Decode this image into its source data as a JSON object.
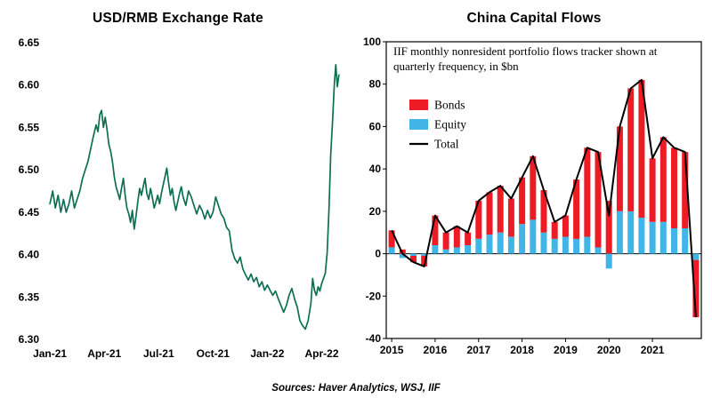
{
  "figure": {
    "sources_note": "Sources: Haver Analytics, WSJ, IIF"
  },
  "chart_data": [
    {
      "type": "line",
      "title": "USD/RMB Exchange Rate",
      "ylabel": "",
      "xlabel": "",
      "y_min": 6.3,
      "y_max": 6.65,
      "x_min": -0.3,
      "x_max": 16.5,
      "grid": false,
      "line_color": "#0e6f51",
      "y_ticks": [
        "6.65",
        "6.60",
        "6.55",
        "6.50",
        "6.45",
        "6.40",
        "6.35",
        "6.30"
      ],
      "x_ticks": [
        {
          "label": "Jan-21",
          "m": 0
        },
        {
          "label": "Apr-21",
          "m": 3
        },
        {
          "label": "Jul-21",
          "m": 6
        },
        {
          "label": "Oct-21",
          "m": 9
        },
        {
          "label": "Jan-22",
          "m": 12
        },
        {
          "label": "Apr-22",
          "m": 15
        }
      ],
      "series_name": "USD/RMB",
      "points": [
        [
          0,
          6.46
        ],
        [
          0.15,
          6.475
        ],
        [
          0.3,
          6.455
        ],
        [
          0.45,
          6.47
        ],
        [
          0.6,
          6.45
        ],
        [
          0.75,
          6.465
        ],
        [
          0.9,
          6.45
        ],
        [
          1.05,
          6.46
        ],
        [
          1.2,
          6.475
        ],
        [
          1.35,
          6.455
        ],
        [
          1.5,
          6.465
        ],
        [
          1.65,
          6.475
        ],
        [
          1.8,
          6.49
        ],
        [
          1.95,
          6.5
        ],
        [
          2.1,
          6.51
        ],
        [
          2.25,
          6.525
        ],
        [
          2.4,
          6.54
        ],
        [
          2.55,
          6.553
        ],
        [
          2.65,
          6.545
        ],
        [
          2.75,
          6.565
        ],
        [
          2.85,
          6.57
        ],
        [
          2.95,
          6.55
        ],
        [
          3.05,
          6.562
        ],
        [
          3.15,
          6.548
        ],
        [
          3.25,
          6.53
        ],
        [
          3.35,
          6.522
        ],
        [
          3.45,
          6.51
        ],
        [
          3.55,
          6.492
        ],
        [
          3.65,
          6.48
        ],
        [
          3.75,
          6.473
        ],
        [
          3.85,
          6.465
        ],
        [
          3.95,
          6.478
        ],
        [
          4.05,
          6.49
        ],
        [
          4.15,
          6.47
        ],
        [
          4.25,
          6.455
        ],
        [
          4.35,
          6.448
        ],
        [
          4.45,
          6.438
        ],
        [
          4.55,
          6.452
        ],
        [
          4.65,
          6.43
        ],
        [
          4.75,
          6.445
        ],
        [
          4.85,
          6.462
        ],
        [
          4.95,
          6.478
        ],
        [
          5.05,
          6.47
        ],
        [
          5.15,
          6.48
        ],
        [
          5.25,
          6.49
        ],
        [
          5.35,
          6.472
        ],
        [
          5.45,
          6.465
        ],
        [
          5.55,
          6.478
        ],
        [
          5.65,
          6.468
        ],
        [
          5.75,
          6.455
        ],
        [
          5.85,
          6.462
        ],
        [
          5.95,
          6.47
        ],
        [
          6.05,
          6.46
        ],
        [
          6.15,
          6.472
        ],
        [
          6.25,
          6.482
        ],
        [
          6.35,
          6.492
        ],
        [
          6.45,
          6.502
        ],
        [
          6.55,
          6.485
        ],
        [
          6.65,
          6.47
        ],
        [
          6.75,
          6.478
        ],
        [
          6.85,
          6.462
        ],
        [
          6.95,
          6.452
        ],
        [
          7.05,
          6.462
        ],
        [
          7.15,
          6.472
        ],
        [
          7.25,
          6.48
        ],
        [
          7.35,
          6.468
        ],
        [
          7.5,
          6.458
        ],
        [
          7.65,
          6.475
        ],
        [
          7.8,
          6.468
        ],
        [
          7.95,
          6.458
        ],
        [
          8.1,
          6.448
        ],
        [
          8.25,
          6.458
        ],
        [
          8.4,
          6.452
        ],
        [
          8.55,
          6.442
        ],
        [
          8.7,
          6.452
        ],
        [
          8.85,
          6.443
        ],
        [
          9,
          6.45
        ],
        [
          9.15,
          6.468
        ],
        [
          9.3,
          6.458
        ],
        [
          9.45,
          6.448
        ],
        [
          9.6,
          6.443
        ],
        [
          9.75,
          6.432
        ],
        [
          9.9,
          6.428
        ],
        [
          10.05,
          6.405
        ],
        [
          10.2,
          6.395
        ],
        [
          10.35,
          6.39
        ],
        [
          10.5,
          6.397
        ],
        [
          10.65,
          6.383
        ],
        [
          10.8,
          6.376
        ],
        [
          10.95,
          6.37
        ],
        [
          11.1,
          6.377
        ],
        [
          11.25,
          6.368
        ],
        [
          11.4,
          6.373
        ],
        [
          11.55,
          6.362
        ],
        [
          11.7,
          6.368
        ],
        [
          11.85,
          6.358
        ],
        [
          12,
          6.364
        ],
        [
          12.15,
          6.358
        ],
        [
          12.3,
          6.352
        ],
        [
          12.45,
          6.357
        ],
        [
          12.6,
          6.348
        ],
        [
          12.75,
          6.34
        ],
        [
          12.9,
          6.332
        ],
        [
          13.05,
          6.34
        ],
        [
          13.2,
          6.352
        ],
        [
          13.35,
          6.36
        ],
        [
          13.5,
          6.348
        ],
        [
          13.65,
          6.338
        ],
        [
          13.8,
          6.322
        ],
        [
          13.95,
          6.316
        ],
        [
          14.1,
          6.312
        ],
        [
          14.25,
          6.322
        ],
        [
          14.4,
          6.342
        ],
        [
          14.5,
          6.372
        ],
        [
          14.6,
          6.358
        ],
        [
          14.7,
          6.352
        ],
        [
          14.8,
          6.362
        ],
        [
          14.9,
          6.357
        ],
        [
          15,
          6.366
        ],
        [
          15.1,
          6.372
        ],
        [
          15.2,
          6.378
        ],
        [
          15.3,
          6.402
        ],
        [
          15.4,
          6.452
        ],
        [
          15.5,
          6.518
        ],
        [
          15.6,
          6.558
        ],
        [
          15.7,
          6.602
        ],
        [
          15.78,
          6.624
        ],
        [
          15.86,
          6.598
        ],
        [
          15.95,
          6.612
        ]
      ]
    },
    {
      "type": "bar",
      "title": "China Capital Flows",
      "annotation": "IIF monthly nonresident portfolio flows tracker shown at quarterly frequency, in $bn",
      "y_min": -40,
      "y_max": 100,
      "grid": false,
      "legend_position": "upper-left-inside",
      "y_ticks": [
        100,
        80,
        60,
        40,
        20,
        0,
        -20,
        -40
      ],
      "x_ticks": [
        {
          "label": "2015",
          "q": 0
        },
        {
          "label": "2016",
          "q": 4
        },
        {
          "label": "2017",
          "q": 8
        },
        {
          "label": "2018",
          "q": 12
        },
        {
          "label": "2019",
          "q": 16
        },
        {
          "label": "2020",
          "q": 20
        },
        {
          "label": "2021",
          "q": 24
        }
      ],
      "categories": [
        "2015 Q1",
        "2015 Q2",
        "2015 Q3",
        "2015 Q4",
        "2016 Q1",
        "2016 Q2",
        "2016 Q3",
        "2016 Q4",
        "2017 Q1",
        "2017 Q2",
        "2017 Q3",
        "2017 Q4",
        "2018 Q1",
        "2018 Q2",
        "2018 Q3",
        "2018 Q4",
        "2019 Q1",
        "2019 Q2",
        "2019 Q3",
        "2019 Q4",
        "2020 Q1",
        "2020 Q2",
        "2020 Q3",
        "2020 Q4",
        "2021 Q1",
        "2021 Q2",
        "2021 Q3",
        "2021 Q4",
        "2022 Q1"
      ],
      "series": [
        {
          "name": "Bonds",
          "type": "bar",
          "color": "#ed1c24",
          "values": [
            8,
            2,
            -3,
            -5,
            14,
            8,
            10,
            6,
            18,
            20,
            22,
            18,
            22,
            30,
            20,
            8,
            10,
            28,
            42,
            45,
            25,
            40,
            58,
            65,
            30,
            40,
            38,
            36,
            -27
          ]
        },
        {
          "name": "Equity",
          "type": "bar",
          "color": "#41b6e6",
          "values": [
            3,
            -2,
            -1,
            -1,
            4,
            2,
            3,
            4,
            7,
            9,
            10,
            8,
            14,
            16,
            10,
            7,
            8,
            7,
            8,
            3,
            -7,
            20,
            20,
            17,
            15,
            15,
            12,
            12,
            -3
          ]
        },
        {
          "name": "Total",
          "type": "line",
          "color": "#000000",
          "values": [
            11,
            0,
            -4,
            -6,
            18,
            10,
            13,
            10,
            25,
            29,
            32,
            26,
            36,
            46,
            30,
            15,
            18,
            35,
            50,
            48,
            18,
            60,
            78,
            82,
            45,
            55,
            50,
            48,
            -30
          ]
        }
      ]
    }
  ]
}
